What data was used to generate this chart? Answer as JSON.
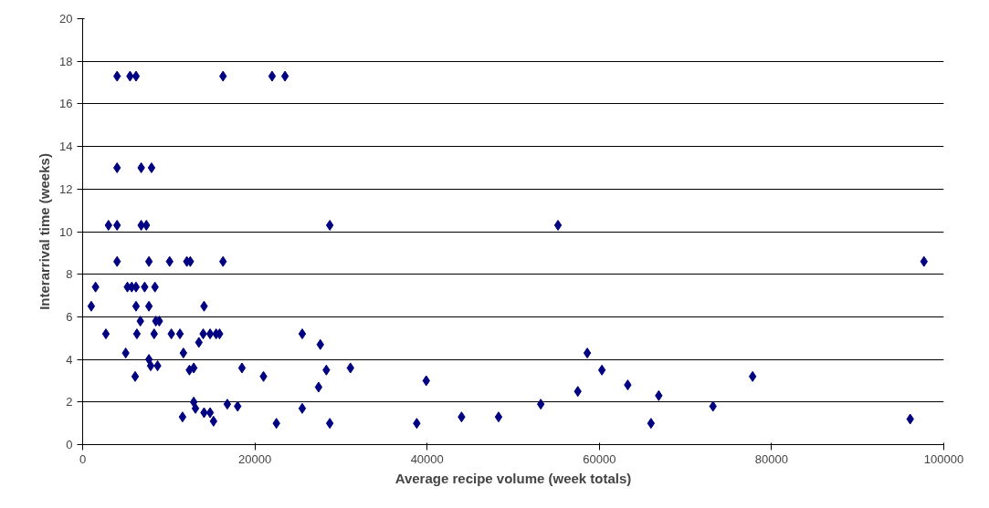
{
  "chart_data": {
    "type": "scatter",
    "xlabel": "Average recipe volume (week totals)",
    "ylabel": "Interarrival time (weeks)",
    "xlim": [
      0,
      100000
    ],
    "xticks": [
      0,
      20000,
      40000,
      60000,
      80000,
      100000
    ],
    "ylim": [
      0,
      20
    ],
    "yticks": [
      0,
      2,
      4,
      6,
      8,
      10,
      12,
      14,
      16,
      18,
      20
    ],
    "grid": "y",
    "marker": "diamond",
    "series": [
      {
        "color": "#000080",
        "x": [
          1000,
          1500,
          2700,
          4000,
          5500,
          6200,
          4000,
          6800,
          8000,
          3000,
          4000,
          6800,
          7400,
          4000,
          7700,
          10100,
          12100,
          12500,
          16300,
          5200,
          5700,
          6200,
          7200,
          8400,
          6200,
          7700,
          6700,
          8900,
          8500,
          6300,
          8300,
          10300,
          11300,
          14000,
          14800,
          15500,
          15900,
          5000,
          11700,
          14100,
          13500,
          7700,
          7900,
          8700,
          6100,
          12400,
          12900,
          11600,
          12900,
          13100,
          14100,
          14800,
          15200,
          16300,
          22000,
          23500,
          16800,
          18000,
          18500,
          21000,
          22500,
          25500,
          25500,
          27400,
          27600,
          28300,
          28700,
          28700,
          31100,
          38800,
          39900,
          44000,
          48300,
          53200,
          55200,
          57500,
          58600,
          60300,
          63300,
          66000,
          66900,
          73200,
          77800,
          96100,
          97700
        ],
        "values": [
          6.5,
          7.4,
          5.2,
          17.3,
          17.3,
          17.3,
          13.0,
          13.0,
          13.0,
          10.3,
          10.3,
          10.3,
          10.3,
          8.6,
          8.6,
          8.6,
          8.6,
          8.6,
          8.6,
          7.4,
          7.4,
          7.4,
          7.4,
          7.4,
          6.5,
          6.5,
          5.8,
          5.8,
          5.8,
          5.2,
          5.2,
          5.2,
          5.2,
          5.2,
          5.2,
          5.2,
          5.2,
          4.3,
          4.3,
          6.5,
          4.8,
          4.0,
          3.7,
          3.7,
          3.2,
          3.5,
          3.6,
          1.3,
          2.0,
          1.7,
          1.5,
          1.5,
          1.1,
          17.3,
          17.3,
          17.3,
          1.9,
          1.8,
          3.6,
          3.2,
          1.0,
          5.2,
          1.7,
          2.7,
          4.7,
          3.5,
          1.0,
          10.3,
          3.6,
          1.0,
          3.0,
          1.3,
          1.3,
          1.9,
          10.3,
          2.5,
          4.3,
          3.5,
          2.8,
          1.0,
          2.3,
          1.8,
          3.2,
          1.2,
          8.6
        ]
      }
    ]
  }
}
